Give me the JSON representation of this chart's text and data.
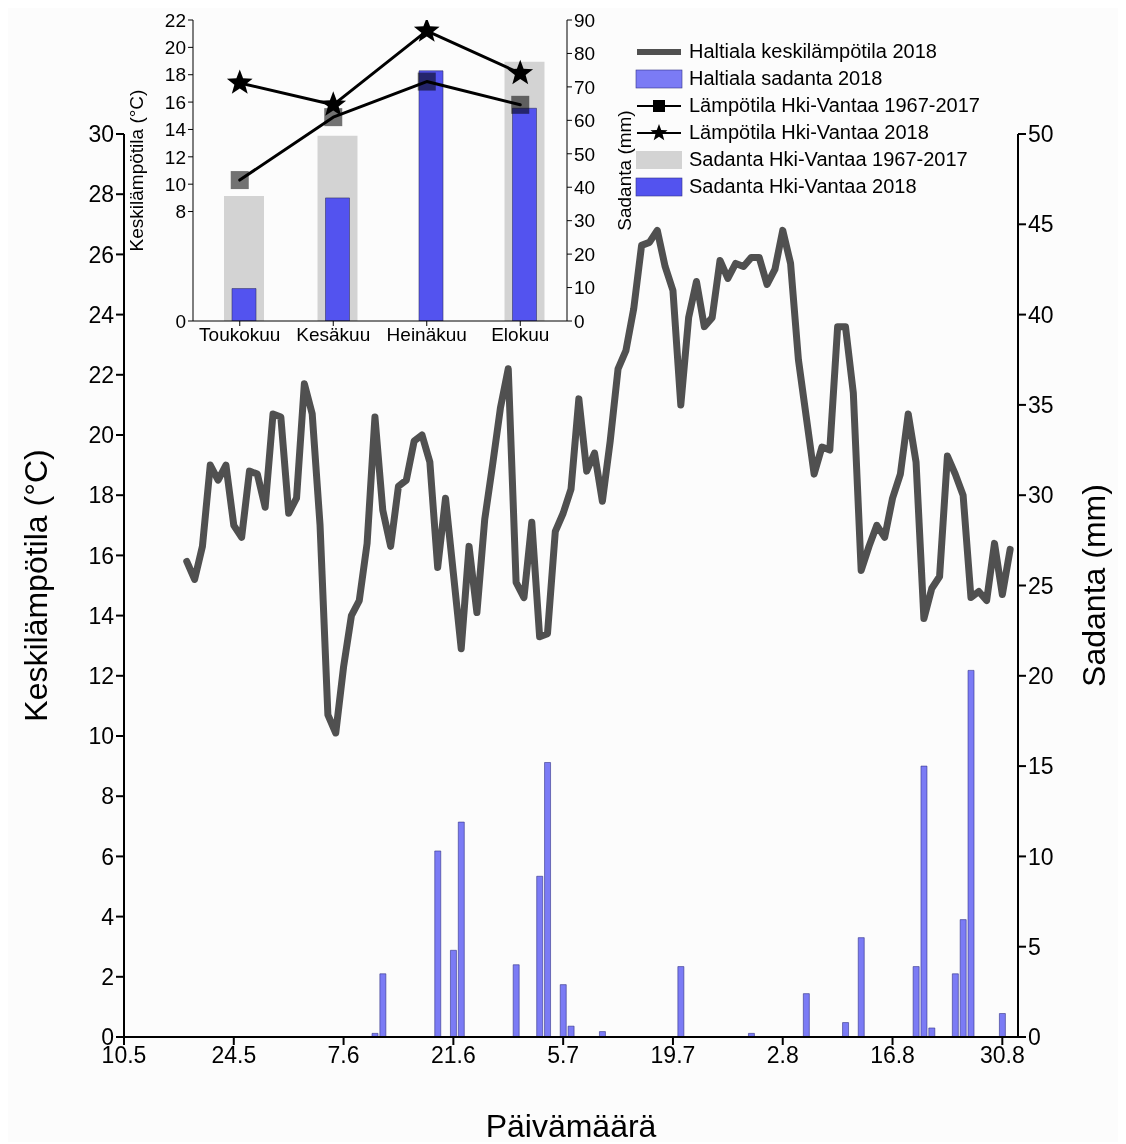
{
  "chart_data": [
    {
      "type": "line",
      "xlabel": "Päivämäärä",
      "ylabel": "Keskilämpötila (°C)",
      "y2label": "Sadanta (mm)",
      "legend": "top right",
      "xlim": [
        "--05-10",
        "--09-01"
      ],
      "xticks": [
        {
          "value": "--05-10",
          "label": "10.5"
        },
        {
          "value": "--05-24",
          "label": "24.5"
        },
        {
          "value": "--06-07",
          "label": "7.6"
        },
        {
          "value": "--06-21",
          "label": "21.6"
        },
        {
          "value": "--07-05",
          "label": "5.7"
        },
        {
          "value": "--07-19",
          "label": "19.7"
        },
        {
          "value": "--08-02",
          "label": "2.8"
        },
        {
          "value": "--08-16",
          "label": "16.8"
        },
        {
          "value": "--08-30",
          "label": "30.8"
        }
      ],
      "ylim": [
        0,
        30
      ],
      "yticks": [
        0,
        2,
        4,
        6,
        8,
        10,
        12,
        14,
        16,
        18,
        20,
        22,
        24,
        26,
        28,
        30
      ],
      "y2lim": [
        0,
        50
      ],
      "y2ticks": [
        0,
        5,
        10,
        15,
        20,
        25,
        30,
        35,
        40,
        45,
        50
      ],
      "series": [
        {
          "name": "Haltiala keskilämpötila 2018",
          "color": "#505050",
          "x": [
            "--05-18",
            "--05-19",
            "--05-20",
            "--05-21",
            "--05-22",
            "--05-23",
            "--05-24",
            "--05-25",
            "--05-26",
            "--05-27",
            "--05-28",
            "--05-29",
            "--05-30",
            "--05-31",
            "--06-01",
            "--06-02",
            "--06-03",
            "--06-04",
            "--06-05",
            "--06-06",
            "--06-07",
            "--06-08",
            "--06-09",
            "--06-10",
            "--06-11",
            "--06-12",
            "--06-13",
            "--06-14",
            "--06-15",
            "--06-16",
            "--06-17",
            "--06-18",
            "--06-19",
            "--06-20",
            "--06-21",
            "--06-22",
            "--06-23",
            "--06-24",
            "--06-25",
            "--06-26",
            "--06-27",
            "--06-28",
            "--06-29",
            "--06-30",
            "--07-01",
            "--07-02",
            "--07-03",
            "--07-04",
            "--07-05",
            "--07-06",
            "--07-07",
            "--07-08",
            "--07-09",
            "--07-10",
            "--07-11",
            "--07-12",
            "--07-13",
            "--07-14",
            "--07-15",
            "--07-16",
            "--07-17",
            "--07-18",
            "--07-19",
            "--07-20",
            "--07-21",
            "--07-22",
            "--07-23",
            "--07-24",
            "--07-25",
            "--07-26",
            "--07-27",
            "--07-28",
            "--07-29",
            "--07-30",
            "--07-31",
            "--08-01",
            "--08-02",
            "--08-03",
            "--08-04",
            "--08-05",
            "--08-06",
            "--08-07",
            "--08-08",
            "--08-09",
            "--08-10",
            "--08-11",
            "--08-12",
            "--08-13",
            "--08-14",
            "--08-15",
            "--08-16",
            "--08-17",
            "--08-18",
            "--08-19",
            "--08-20",
            "--08-21",
            "--08-22",
            "--08-23",
            "--08-24",
            "--08-25",
            "--08-26",
            "--08-27",
            "--08-28",
            "--08-29",
            "--08-30",
            "--08-31"
          ],
          "values": [
            15.8,
            15.2,
            16.3,
            19.0,
            18.5,
            19.0,
            17.0,
            16.6,
            18.8,
            18.7,
            17.6,
            20.7,
            20.6,
            17.4,
            17.9,
            21.7,
            20.7,
            17.0,
            10.7,
            10.1,
            12.3,
            14.0,
            14.5,
            16.4,
            20.6,
            17.5,
            16.3,
            18.3,
            18.5,
            19.8,
            20.0,
            19.1,
            15.6,
            17.9,
            15.4,
            12.9,
            16.3,
            14.1,
            17.2,
            19.0,
            20.9,
            22.2,
            15.1,
            14.6,
            17.1,
            13.3,
            13.4,
            16.8,
            17.4,
            18.2,
            21.2,
            18.8,
            19.4,
            17.8,
            19.8,
            22.2,
            22.8,
            24.2,
            26.3,
            26.4,
            26.8,
            25.6,
            24.8,
            21.0,
            23.9,
            25.1,
            23.6,
            23.9,
            25.8,
            25.2,
            25.7,
            25.6,
            25.9,
            25.9,
            25.0,
            25.5,
            26.8,
            25.7,
            22.5,
            20.6,
            18.7,
            19.6,
            19.5,
            23.6,
            23.6,
            21.4,
            15.5,
            16.3,
            17.0,
            16.6,
            17.9,
            18.7,
            20.7,
            19.1,
            13.9,
            14.9,
            15.3,
            19.3,
            18.7,
            18.0,
            14.6,
            14.8,
            14.5,
            16.4,
            14.7,
            16.2
          ]
        },
        {
          "name": "Haltiala sadanta 2018",
          "type": "bar",
          "axis": "y2",
          "color": "#7b7bf5",
          "x": [
            "--06-11",
            "--06-12",
            "--06-19",
            "--06-21",
            "--06-22",
            "--06-29",
            "--07-02",
            "--07-03",
            "--07-05",
            "--07-06",
            "--07-10",
            "--07-20",
            "--07-29",
            "--08-05",
            "--08-10",
            "--08-12",
            "--08-19",
            "--08-20",
            "--08-21",
            "--08-24",
            "--08-25",
            "--08-26",
            "--08-30"
          ],
          "values": [
            0.2,
            3.5,
            10.3,
            4.8,
            11.9,
            4.0,
            8.9,
            15.2,
            2.9,
            0.6,
            0.3,
            3.9,
            0.2,
            2.4,
            0.8,
            5.5,
            3.9,
            15.0,
            0.5,
            3.5,
            6.5,
            20.3,
            1.3
          ]
        }
      ]
    },
    {
      "type": "line",
      "ylabel": "Keskilämpötila (°C)",
      "y2label": "Sadanta (mm)",
      "legend": "right",
      "line_style": "solid",
      "categories": [
        "Toukokuu",
        "Kesäkuu",
        "Heinäkuu",
        "Elokuu"
      ],
      "ylim": [
        0,
        22
      ],
      "yticks": [
        0,
        8,
        10,
        12,
        14,
        16,
        18,
        20,
        22
      ],
      "y2lim": [
        0,
        90
      ],
      "y2ticks": [
        0,
        10,
        20,
        30,
        40,
        50,
        60,
        70,
        80,
        90
      ],
      "series": [
        {
          "name": "Lämpötila Hki-Vantaa 1967-2017",
          "marker": "square",
          "color": "#000000",
          "values": [
            10.3,
            14.9,
            17.5,
            15.8
          ]
        },
        {
          "name": "Lämpötila Hki-Vantaa 2018",
          "marker": "star",
          "color": "#000000",
          "values": [
            17.4,
            15.8,
            21.2,
            18.1
          ]
        },
        {
          "name": "Sadanta Hki-Vantaa 1967-2017",
          "type": "bar",
          "axis": "y2",
          "color": "#d3d3d3",
          "values": [
            37.4,
            55.4,
            null,
            77.5
          ]
        },
        {
          "name": "Sadanta Hki-Vantaa 2018",
          "type": "bar",
          "axis": "y2",
          "color": "#5353ef",
          "values": [
            9.7,
            36.8,
            74.8,
            63.6
          ]
        }
      ]
    }
  ]
}
